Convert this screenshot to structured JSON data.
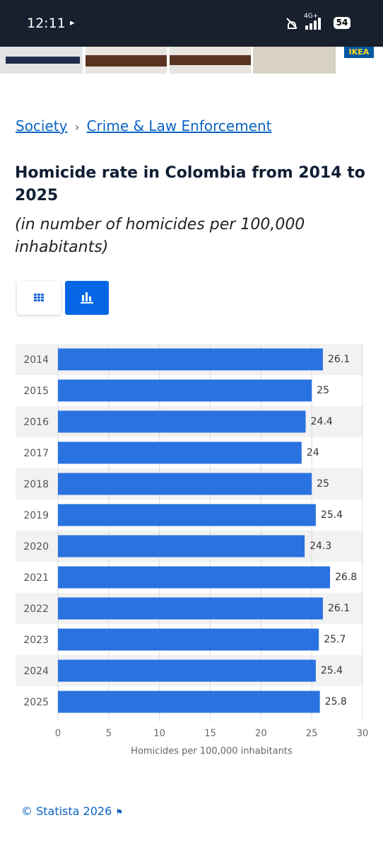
{
  "status_bar": {
    "time": "12:11",
    "network": "4G+",
    "battery": "54"
  },
  "ad": {
    "brand": "IKEA"
  },
  "breadcrumb": [
    "Society",
    "Crime & Law Enforcement"
  ],
  "footer": "© Statista 2026",
  "chart_data": {
    "type": "bar",
    "orientation": "horizontal",
    "title": "Homicide rate in Colombia from 2014 to 2025",
    "subtitle": "(in number of homicides per 100,000 inhabitants)",
    "x_label": "Homicides per 100,000 inhabitants",
    "categories": [
      "2014",
      "2015",
      "2016",
      "2017",
      "2018",
      "2019",
      "2020",
      "2021",
      "2022",
      "2023",
      "2024",
      "2025"
    ],
    "values": [
      26.1,
      25,
      24.4,
      24,
      25,
      25.4,
      24.3,
      26.8,
      26.1,
      25.7,
      25.4,
      25.8
    ],
    "color": "#2a72e0",
    "xlim": [
      0,
      30
    ],
    "xticks": [
      0,
      5,
      10,
      15,
      20,
      25,
      30
    ],
    "grid": true
  }
}
